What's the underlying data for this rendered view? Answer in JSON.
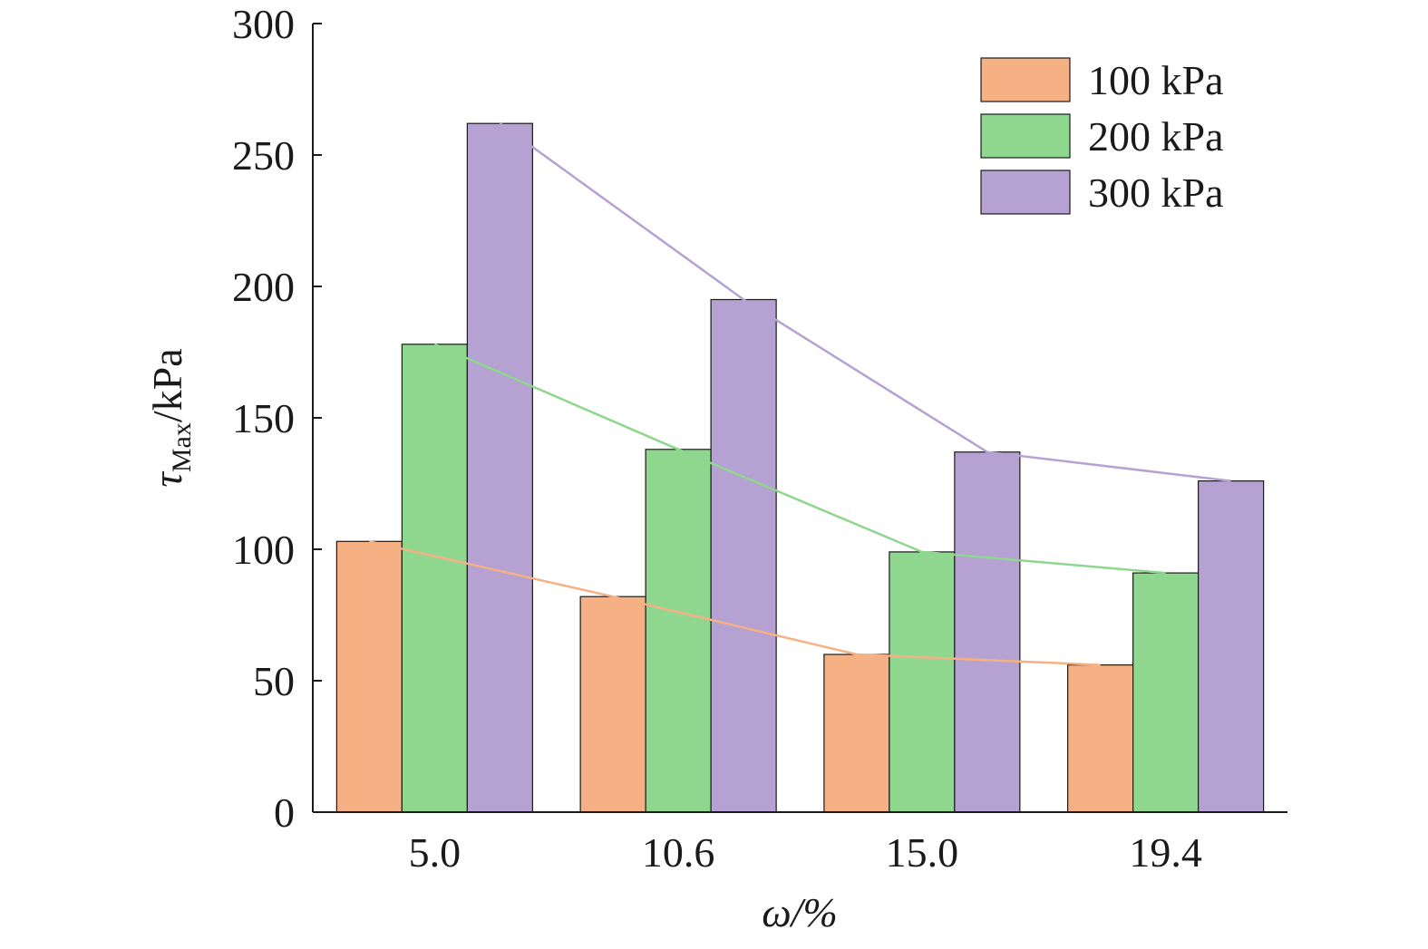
{
  "chart_data": {
    "type": "bar",
    "categories": [
      "5.0",
      "10.6",
      "15.0",
      "19.4"
    ],
    "series": [
      {
        "name": "100 kPa",
        "values": [
          103,
          82,
          60,
          56
        ],
        "color": "#F5B184"
      },
      {
        "name": "200 kPa",
        "values": [
          178,
          138,
          99,
          91
        ],
        "color": "#8FD68F"
      },
      {
        "name": "300 kPa",
        "values": [
          262,
          195,
          137,
          126
        ],
        "color": "#B5A2D3"
      }
    ],
    "trend_lines": true,
    "title": "",
    "xlabel": "ω/%",
    "ylabel_main": "τ",
    "ylabel_sub": "Max",
    "ylabel_suffix": "/kPa",
    "ylim": [
      0,
      300
    ],
    "yticks": [
      0,
      50,
      100,
      150,
      200,
      250,
      300
    ],
    "yticks_labels": [
      "0",
      "50",
      "100",
      "150",
      "200",
      "250",
      "300"
    ],
    "grid": false,
    "legend_position": "top-right"
  }
}
